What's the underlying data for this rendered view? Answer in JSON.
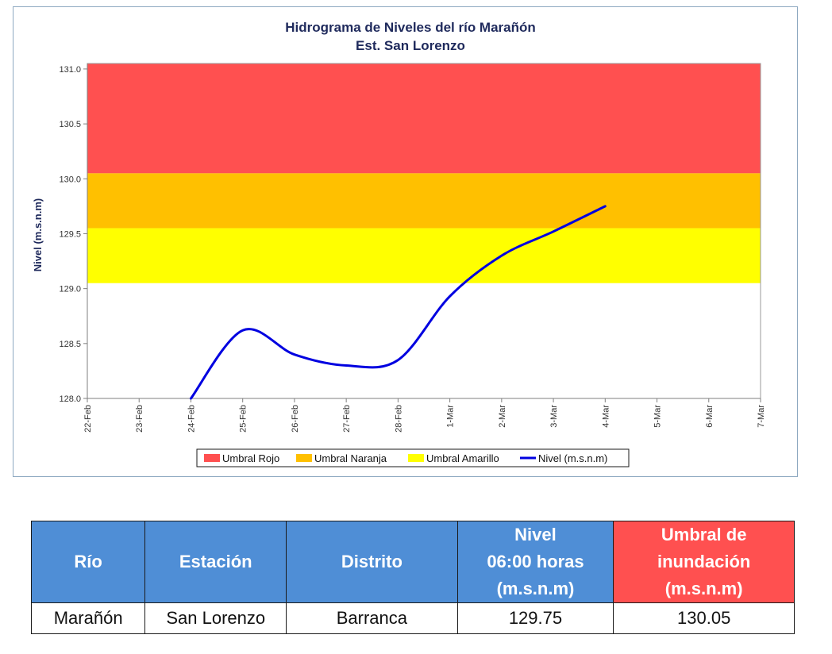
{
  "chart_data": {
    "type": "line",
    "title": "Hidrograma de Niveles del río Marañón",
    "subtitle": "Est. San Lorenzo",
    "ylabel": "Nivel (m.s.n.m)",
    "xlabel": "",
    "ylim": [
      128.0,
      131.0
    ],
    "yticks": [
      "128.0",
      "128.5",
      "129.0",
      "129.5",
      "130.0",
      "130.5",
      "131.0"
    ],
    "categories": [
      "22-Feb",
      "23-Feb",
      "24-Feb",
      "25-Feb",
      "26-Feb",
      "27-Feb",
      "28-Feb",
      "1-Mar",
      "2-Mar",
      "3-Mar",
      "4-Mar",
      "5-Mar",
      "6-Mar",
      "7-Mar"
    ],
    "bands": [
      {
        "name": "Umbral Rojo",
        "from": 130.05,
        "to": 131.05,
        "color": "#ff5050"
      },
      {
        "name": "Umbral Naranja",
        "from": 129.55,
        "to": 130.05,
        "color": "#ffc000"
      },
      {
        "name": "Umbral Amarillo",
        "from": 129.05,
        "to": 129.55,
        "color": "#ffff00"
      }
    ],
    "series": [
      {
        "name": "Nivel (m.s.n.m)",
        "color": "#0000e0",
        "x": [
          "24-Feb",
          "25-Feb",
          "26-Feb",
          "27-Feb",
          "28-Feb",
          "1-Mar",
          "2-Mar",
          "3-Mar",
          "4-Mar"
        ],
        "values": [
          128.0,
          128.62,
          128.4,
          128.3,
          128.35,
          128.93,
          129.3,
          129.52,
          129.75
        ]
      }
    ],
    "legend": [
      "Umbral Rojo",
      "Umbral Naranja",
      "Umbral Amarillo",
      "Nivel (m.s.n.m)"
    ],
    "legend_position": "bottom",
    "grid": false
  },
  "table": {
    "headers": [
      "Río",
      "Estación",
      "Distrito",
      "Nivel\n06:00 horas\n(m.s.n.m)",
      "Umbral de\ninundación\n(m.s.n.m)"
    ],
    "header_colors": [
      "#4f8ed6",
      "#4f8ed6",
      "#4f8ed6",
      "#4f8ed6",
      "#ff5050"
    ],
    "rows": [
      [
        "Marañón",
        "San Lorenzo",
        "Barranca",
        "129.75",
        "130.05"
      ]
    ]
  }
}
